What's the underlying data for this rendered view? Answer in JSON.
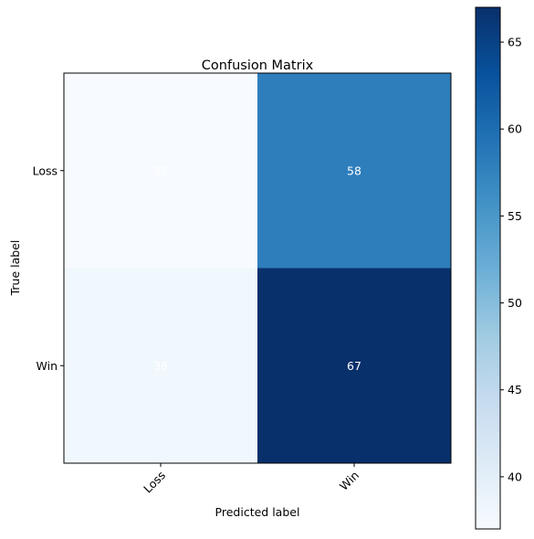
{
  "chart_data": {
    "type": "heatmap",
    "title": "Confusion Matrix",
    "xlabel": "Predicted label",
    "ylabel": "True label",
    "x_categories": [
      "Loss",
      "Win"
    ],
    "y_categories": [
      "Loss",
      "Win"
    ],
    "values": [
      [
        37,
        58
      ],
      [
        38,
        67
      ]
    ],
    "colormap": "Blues",
    "color_range": [
      37,
      67
    ],
    "colorbar_ticks": [
      "40",
      "45",
      "50",
      "55",
      "60",
      "65"
    ],
    "colorbar_tick_values": [
      40,
      45,
      50,
      55,
      60,
      65
    ],
    "grid": false,
    "low_color": "#f7fbff",
    "high_color": "#08306b",
    "cell_text_color": "#ffffff"
  }
}
